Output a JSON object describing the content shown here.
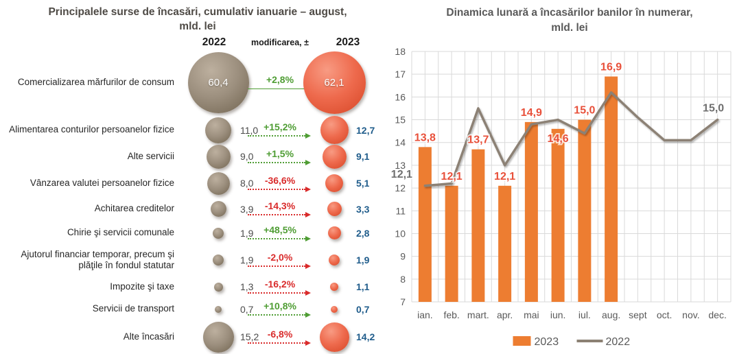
{
  "chart_data": [
    {
      "type": "bubble-comparison",
      "title": "Principalele surse de încasări, cumulativ ianuarie – august, mld. lei",
      "title_lines": [
        "Principalele surse de încasări, cumulativ ianuarie – august,",
        "mld. lei"
      ],
      "columns": {
        "left": "2022",
        "middle": "modificarea, ±",
        "right": "2023"
      },
      "unit": "mld. lei",
      "rows": [
        {
          "label": "Comercializarea mărfurilor de consum",
          "value_2022": 60.4,
          "change_pct": "+2,8%",
          "value_2023": 62.1,
          "direction": "up"
        },
        {
          "label": "Alimentarea conturilor persoanelor fizice",
          "value_2022": 11.0,
          "change_pct": "+15,2%",
          "value_2023": 12.7,
          "direction": "up"
        },
        {
          "label": "Alte servicii",
          "value_2022": 9.0,
          "change_pct": "+1,5%",
          "value_2023": 9.1,
          "direction": "up"
        },
        {
          "label": "Vânzarea valutei persoanelor fizice",
          "value_2022": 8.0,
          "change_pct": "-36,6%",
          "value_2023": 5.1,
          "direction": "down"
        },
        {
          "label": "Achitarea creditelor",
          "value_2022": 3.9,
          "change_pct": "-14,3%",
          "value_2023": 3.3,
          "direction": "down"
        },
        {
          "label": "Chirie şi servicii comunale",
          "value_2022": 1.9,
          "change_pct": "+48,5%",
          "value_2023": 2.8,
          "direction": "up"
        },
        {
          "label": "Ajutorul financiar temporar, precum şi plăţile în fondul statutar",
          "value_2022": 1.9,
          "change_pct": "-2,0%",
          "value_2023": 1.9,
          "direction": "down"
        },
        {
          "label": "Impozite şi taxe",
          "value_2022": 1.3,
          "change_pct": "-16,2%",
          "value_2023": 1.1,
          "direction": "down"
        },
        {
          "label": "Servicii de transport",
          "value_2022": 0.7,
          "change_pct": "+10,8%",
          "value_2023": 0.7,
          "direction": "up"
        },
        {
          "label": "Alte încasări",
          "value_2022": 15.2,
          "change_pct": "-6,8%",
          "value_2023": 14.2,
          "direction": "down"
        }
      ],
      "colors": {
        "bubble_2022": "#9c8f7e",
        "bubble_2023": "#ee6a4d",
        "increase": "#4f9d34",
        "decrease": "#d92b2b",
        "value_2022_text": "#4a4a4a",
        "value_2023_text": "#1f5c8b"
      }
    },
    {
      "type": "bar+line",
      "title": "Dinamica lunară a încasărilor banilor în numerar, mld. lei",
      "title_lines": [
        "Dinamica lunară a încasărilor banilor în numerar,",
        "mld. lei"
      ],
      "categories": [
        "ian.",
        "feb.",
        "mart.",
        "apr.",
        "mai",
        "iun.",
        "iul.",
        "aug.",
        "sept",
        "oct.",
        "nov.",
        "dec."
      ],
      "series": [
        {
          "name": "2023",
          "type": "bar",
          "color": "#ed7d31",
          "label_color": "#e8503a",
          "values": [
            13.8,
            12.1,
            13.7,
            12.1,
            14.9,
            14.6,
            15.0,
            16.9
          ]
        },
        {
          "name": "2022",
          "type": "line",
          "color": "#8c8174",
          "label_color": "#6f6f6f",
          "values": [
            12.1,
            12.2,
            15.5,
            13.0,
            14.8,
            15.0,
            14.4,
            16.2,
            15.1,
            14.1,
            14.1,
            15.0
          ],
          "labeled_points": [
            {
              "index": 0,
              "text": "12,1"
            },
            {
              "index": 11,
              "text": "15,0"
            }
          ]
        }
      ],
      "ylim": [
        7,
        18
      ],
      "ytick_step": 1,
      "grid": true,
      "grid_color": "#d9d9d9",
      "axis_text_color": "#595959",
      "legend_position": "bottom"
    }
  ]
}
